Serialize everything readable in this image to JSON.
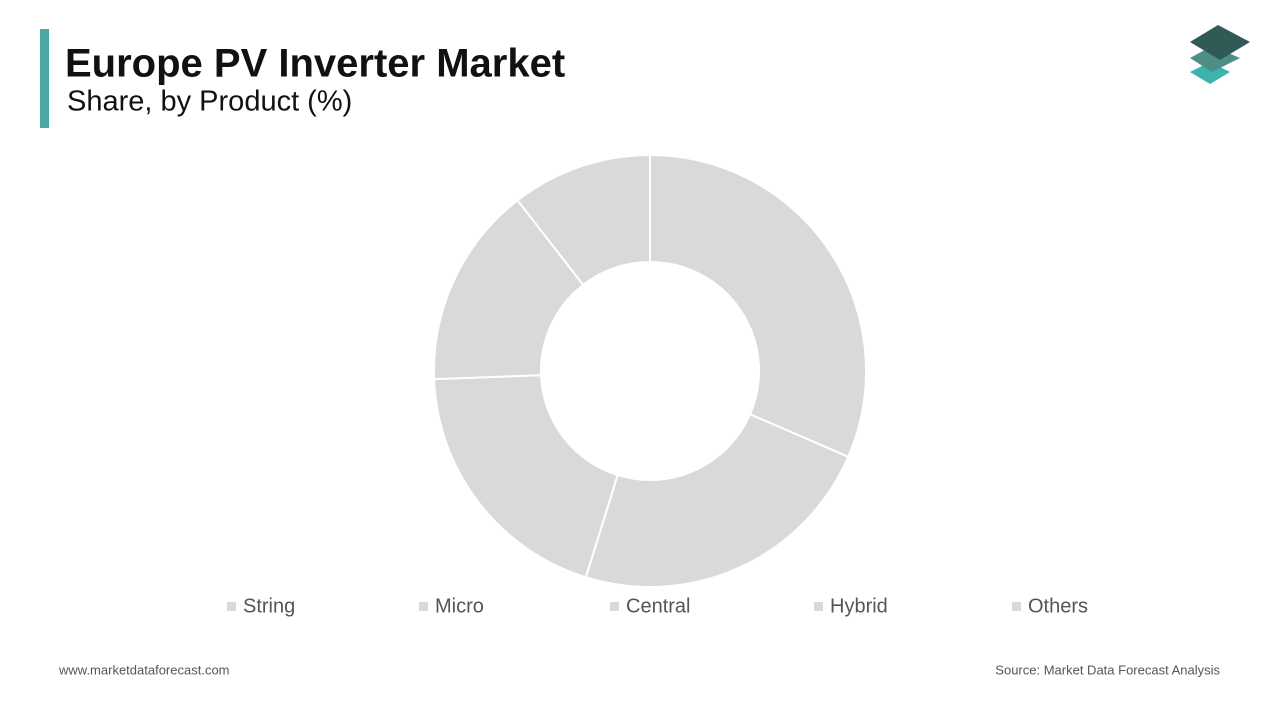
{
  "chart_data": {
    "type": "donut",
    "title": "Europe PV Inverter Market",
    "subtitle": "Share, by Product  (%)",
    "categories": [
      "String",
      "Micro",
      "Central",
      "Hybrid",
      "Others"
    ],
    "values": [
      31.5,
      23.3,
      19.6,
      15.1,
      10.5
    ],
    "colors": [
      "#d9d9d9",
      "#d9d9d9",
      "#d9d9d9",
      "#d9d9d9",
      "#d9d9d9"
    ],
    "legend": "bottom"
  },
  "footer": {
    "website": "www.marketdataforecast.com",
    "source": "Source: Market Data Forecast Analysis"
  }
}
